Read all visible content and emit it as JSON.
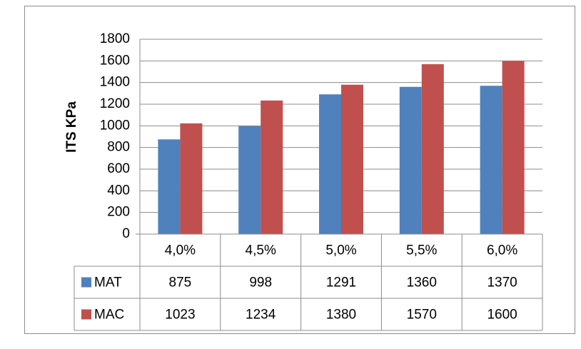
{
  "chart_data": {
    "type": "bar",
    "title": "",
    "xlabel": "",
    "ylabel": "ITS KPa",
    "ylim": [
      0,
      1800
    ],
    "yticks": [
      "0",
      "200",
      "400",
      "600",
      "800",
      "1000",
      "1200",
      "1400",
      "1600",
      "1800"
    ],
    "grid": true,
    "legend": "data-table",
    "categories": [
      "4,0%",
      "4,5%",
      "5,0%",
      "5,5%",
      "6,0%"
    ],
    "series": [
      {
        "name": "MAT",
        "color": "#4f81bd",
        "values": [
          875,
          998,
          1291,
          1360,
          1370
        ],
        "labels": [
          "875",
          "998",
          "1291",
          "1360",
          "1370"
        ]
      },
      {
        "name": "MAC",
        "color": "#c0504d",
        "values": [
          1023,
          1234,
          1380,
          1570,
          1600
        ],
        "labels": [
          "1023",
          "1234",
          "1380",
          "1570",
          "1600"
        ]
      }
    ]
  }
}
